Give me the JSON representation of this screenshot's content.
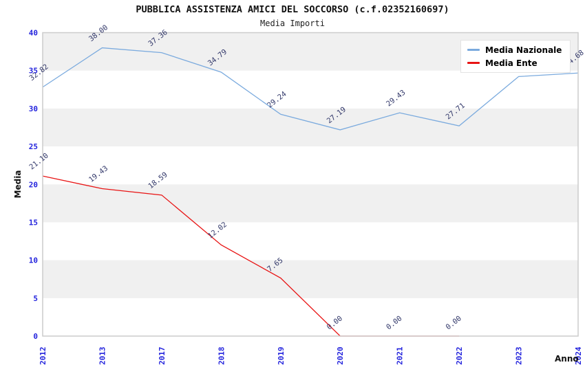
{
  "header": {
    "title": "PUBBLICA ASSISTENZA AMICI DEL SOCCORSO (c.f.02352160697)",
    "subtitle": "Media Importi"
  },
  "chart_data": {
    "type": "line",
    "title": "PUBBLICA ASSISTENZA AMICI DEL SOCCORSO (c.f.02352160697)",
    "subtitle": "Media Importi",
    "xlabel": "Anno",
    "ylabel": "Media",
    "categories": [
      "2012",
      "2013",
      "2017",
      "2018",
      "2019",
      "2020",
      "2021",
      "2022",
      "2023",
      "2024"
    ],
    "series": [
      {
        "name": "Media Nazionale",
        "color": "#7aaade",
        "values": [
          32.82,
          38.0,
          37.36,
          34.79,
          29.24,
          27.19,
          29.43,
          27.71,
          34.21,
          34.68
        ],
        "labels": [
          "32.82",
          "38.00",
          "37.36",
          "34.79",
          "29.24",
          "27.19",
          "29.43",
          "27.71",
          "34.21",
          "34.68"
        ]
      },
      {
        "name": "Media Ente",
        "color": "#e81414",
        "values": [
          21.1,
          19.43,
          18.59,
          12.02,
          7.65,
          0.0,
          0.0,
          0.0,
          null,
          null
        ],
        "labels": [
          "21.10",
          "19.43",
          "18.59",
          "12.02",
          "7.65",
          "0.00",
          "0.00",
          "0.00",
          null,
          null
        ]
      }
    ],
    "ylim": [
      0,
      40
    ],
    "ytick_step": 5,
    "yticks": [
      0,
      5,
      10,
      15,
      20,
      25,
      30,
      35,
      40
    ],
    "grid": "alternating-horizontal-bands",
    "legend_position": "top-right",
    "x_tick_rotation": -90,
    "data_label_rotation": -38
  },
  "colors": {
    "band": "#f0f0f0",
    "frame": "#cccccc",
    "tick_label": "#2424dd",
    "data_label": "#32386a",
    "background": "#ffffff"
  }
}
